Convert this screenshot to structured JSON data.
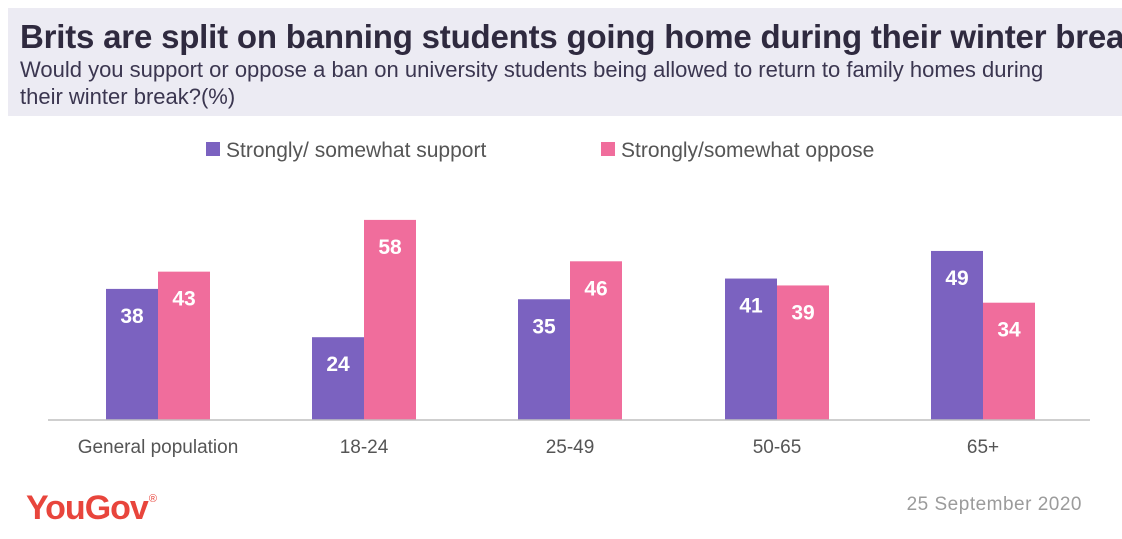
{
  "header": {
    "title": "Brits are split on banning students going home during their winter break",
    "subtitle": "Would you support or oppose a ban on university students being allowed to return to family homes during their winter break?(%)"
  },
  "chart_data": {
    "type": "bar",
    "title": "Brits are split on banning students going home during their winter break",
    "subtitle": "Would you support or oppose a ban on university students being allowed to return to family homes during their winter break?(%)",
    "categories": [
      "General  population",
      "18-24",
      "25-49",
      "50-65",
      "65+"
    ],
    "series": [
      {
        "name": "Strongly/ somewhat support",
        "color": "#7b62c0",
        "values": [
          38,
          24,
          35,
          41,
          49
        ]
      },
      {
        "name": "Strongly/somewhat oppose",
        "color": "#f06d9c",
        "values": [
          43,
          58,
          46,
          39,
          34
        ]
      }
    ],
    "xlabel": "",
    "ylabel": "",
    "ylim": [
      0,
      60
    ],
    "grid": false,
    "legend": "top-center",
    "data_labels": true
  },
  "footer": {
    "logo_text": "YouGov",
    "logo_mark": "®",
    "date": "25  September 2020"
  },
  "colors": {
    "header_bg": "#ecebf3",
    "support": "#7b62c0",
    "oppose": "#f06d9c",
    "brand": "#e8453c"
  }
}
